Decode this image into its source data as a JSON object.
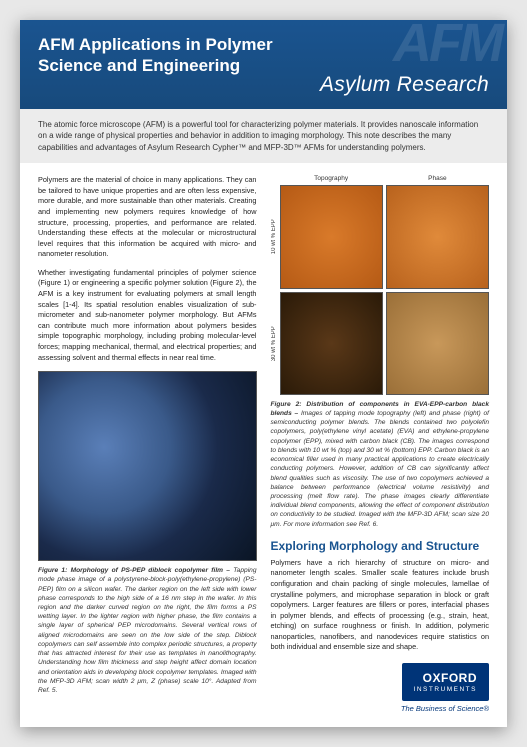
{
  "header": {
    "title": "AFM Applications in Polymer\nScience and Engineering",
    "watermark": "AFM",
    "subtitle": "Asylum Research"
  },
  "intro": "The atomic force microscope (AFM) is a powerful tool for characterizing polymer materials. It provides nanoscale information on a wide range of physical properties and behavior in addition to imaging morphology. This note describes the many capabilities and advantages of Asylum Research Cypher™ and MFP-3D™ AFMs for understanding polymers.",
  "left": {
    "p1": "Polymers are the material of choice in many applications. They can be tailored to have unique properties and are often less expensive, more durable, and more sustainable than other materials. Creating and implementing new polymers requires knowledge of how structure, processing, properties, and performance are related. Understanding these effects at the molecular or microstructural level requires that this information be acquired with micro- and nanometer resolution.",
    "p2": "Whether investigating fundamental principles of polymer science (Figure 1) or engineering a specific polymer solution (Figure 2), the AFM is a key instrument for evaluating polymers at small length scales [1-4]. Its spatial resolution enables visualization of sub-micrometer and sub-nanometer polymer morphology. But AFMs can contribute much more information about polymers besides simple topographic morphology, including probing molecular-level forces; mapping mechanical, thermal, and electrical properties; and assessing solvent and thermal effects in near real time.",
    "fig1_bold": "Figure 1: Morphology of PS-PEP diblock copolymer film – ",
    "fig1_text": "Tapping mode phase image of a polystyrene-block-poly(ethylene-propylene) (PS-PEP) film on a silicon wafer. The darker region on the left side with lower phase corresponds to the high side of a 16 nm step in the wafer. In this region and the darker curved region on the right, the film forms a PS wetting layer. In the lighter region with higher phase, the film contains a single layer of spherical PEP microdomains. Several vertical rows of aligned microdomains are seen on the low side of the step. Diblock copolymers can self assemble into complex periodic structures, a property that has attracted interest for their use as templates in nanolithography. Understanding how film thickness and step height affect domain location and orientation aids in developing block copolymer templates. Imaged with the MFP-3D AFM; scan width 2 μm, Z (phase) scale 10°. Adapted from Ref. 5."
  },
  "right": {
    "topo": "Topography",
    "phase": "Phase",
    "row1": "10 wt % EPP",
    "row2": "30 wt % EPP",
    "fig2_bold": "Figure 2: Distribution of components in EVA-EPP-carbon black blends – ",
    "fig2_text": "Images of tapping mode topography (left) and phase (right) of semiconducting polymer blends. The blends contained two polyolefin copolymers, poly(ethylene vinyl acetate) (EVA) and ethylene-propylene copolymer (EPP), mixed with carbon black (CB). The images correspond to blends with 10 wt % (top) and 30 wt % (bottom) EPP. Carbon black is an economical filler used in many practical applications to create electrically conducting polymers. However, addition of CB can significantly affect blend qualities such as viscosity. The use of two copolymers achieved a balance between performance (electrical volume resistivity) and processing (melt flow rate). The phase images clearly differentiate individual blend components, allowing the effect of component distribution on conductivity to be studied. Imaged with the MFP-3D AFM; scan size 20 μm. For more information see Ref. 6.",
    "section": "Exploring Morphology and Structure",
    "p3": "Polymers have a rich hierarchy of structure on micro- and nanometer length scales. Smaller scale features include brush configuration and chain packing of single molecules, lamellae of crystalline polymers, and microphase separation in block or graft copolymers. Larger features are fillers or pores, interfacial phases in polymer blends, and effects of processing (e.g., strain, heat, etching) on surface roughness or finish. In addition, polymeric nanoparticles, nanofibers, and nanodevices require statistics on both individual and ensemble size and shape."
  },
  "logo": {
    "name": "OXFORD",
    "inst": "INSTRUMENTS",
    "tagline": "The Business of Science®"
  }
}
